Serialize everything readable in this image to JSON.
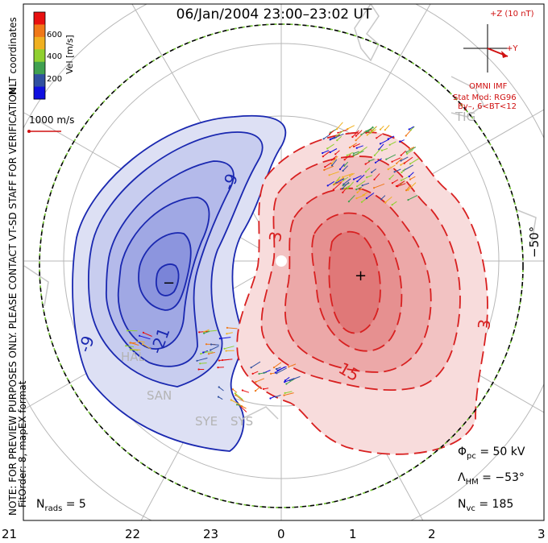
{
  "title": "06/Jan/2004 23:00–23:02 UT",
  "left_notes": {
    "coords": "MLT coordinates",
    "preview": "NOTE: FOR PREVIEW PURPOSES ONLY. PLEASE CONTACT VT-SD STAFF FOR VERIFICATION.",
    "fit": "FitOrder: 8, mapEX format"
  },
  "velocity_scale": {
    "label": "Vel [m/s]",
    "ticks": [
      "600",
      "400",
      "200"
    ],
    "colors": [
      "#e81010",
      "#f07818",
      "#f0b020",
      "#90d030",
      "#40a050",
      "#3050a0",
      "#1010e0"
    ]
  },
  "vector_reference": {
    "label": "1000 m/s"
  },
  "imf_panel": {
    "z_label": "+Z (10 nT)",
    "y_label": "+Y",
    "omni": "OMNI IMF",
    "stat_mod": "Stat Mod: RG96",
    "condition": "By–, 6<BT<12"
  },
  "stations": [
    "TIG",
    "HAL",
    "SAN",
    "SYE",
    "SYS"
  ],
  "contour_labels": {
    "negative": [
      "-9",
      "-21",
      "-9"
    ],
    "positive": [
      "3",
      "15",
      "3"
    ]
  },
  "latitude_label": "−50°",
  "stats": {
    "phi_pc": "Φpc = 50 kV",
    "lambda_hm": "ΛHM = −53°",
    "n_vc": "Nvc = 185",
    "n_rads": "Nrads = 5"
  },
  "mlt_axis": [
    "21",
    "22",
    "23",
    "0",
    "1",
    "2",
    "3"
  ],
  "colors": {
    "negative_line": "#1a28b0",
    "positive_line": "#d82020",
    "boundary_green": "#70c030",
    "grid": "#b0b0b0",
    "text_red": "#d01010"
  }
}
